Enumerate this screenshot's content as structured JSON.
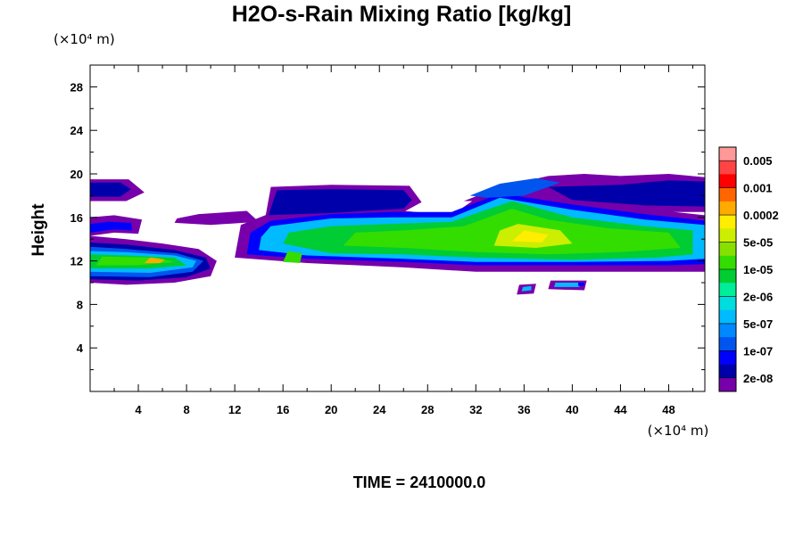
{
  "chart_data": {
    "type": "heatmap",
    "title": "H2O-s-Rain Mixing Ratio [kg/kg]",
    "ylabel": "Height",
    "x_unit": "(×10⁴ m)",
    "y_unit": "(×10⁴ m)",
    "xlim": [
      0,
      51
    ],
    "ylim": [
      0,
      30
    ],
    "x_ticks": [
      4,
      8,
      12,
      16,
      20,
      24,
      28,
      32,
      36,
      40,
      44,
      48
    ],
    "y_ticks": [
      4,
      8,
      12,
      16,
      20,
      24,
      28
    ],
    "colorbar": {
      "labels": [
        "0.005",
        "0.001",
        "0.0002",
        "5e-05",
        "1e-05",
        "2e-06",
        "5e-07",
        "1e-07",
        "2e-08"
      ],
      "colors": [
        "#ff9999",
        "#ff4444",
        "#ff0000",
        "#ff6600",
        "#ffaa00",
        "#ffee00",
        "#ccee00",
        "#88e000",
        "#33dd00",
        "#00cc33",
        "#00ee99",
        "#00dddd",
        "#00bbff",
        "#0088ff",
        "#0055ee",
        "#0000ff",
        "#0000aa",
        "#7700aa"
      ]
    },
    "regions": [
      {
        "level": 0,
        "pts": [
          [
            0,
            17.5
          ],
          [
            3,
            17.5
          ],
          [
            4.5,
            18.3
          ],
          [
            3.2,
            19.5
          ],
          [
            0,
            19.5
          ]
        ]
      },
      {
        "level": 1,
        "pts": [
          [
            0,
            17.9
          ],
          [
            2.5,
            17.9
          ],
          [
            3.4,
            18.6
          ],
          [
            2.5,
            19.2
          ],
          [
            0,
            19.2
          ]
        ]
      },
      {
        "level": 0,
        "pts": [
          [
            0,
            10
          ],
          [
            3,
            9.8
          ],
          [
            7,
            10
          ],
          [
            10,
            10.6
          ],
          [
            10.5,
            12
          ],
          [
            9,
            13.1
          ],
          [
            6,
            13.6
          ],
          [
            3,
            14
          ],
          [
            0,
            14.3
          ]
        ]
      },
      {
        "level": 1,
        "pts": [
          [
            0,
            10.3
          ],
          [
            4,
            10.2
          ],
          [
            8,
            10.5
          ],
          [
            10,
            11.3
          ],
          [
            9.6,
            12.3
          ],
          [
            7,
            13
          ],
          [
            3,
            13.5
          ],
          [
            0,
            13.7
          ]
        ]
      },
      {
        "level": 3,
        "pts": [
          [
            0,
            10.6
          ],
          [
            5,
            10.5
          ],
          [
            8.5,
            11
          ],
          [
            9.4,
            12
          ],
          [
            7.2,
            12.7
          ],
          [
            3,
            13.1
          ],
          [
            0,
            13.3
          ]
        ]
      },
      {
        "level": 5,
        "pts": [
          [
            0,
            11
          ],
          [
            5,
            10.9
          ],
          [
            8.5,
            11.4
          ],
          [
            8.8,
            12
          ],
          [
            7,
            12.5
          ],
          [
            3,
            12.8
          ],
          [
            0,
            12.9
          ]
        ]
      },
      {
        "level": 8,
        "pts": [
          [
            0,
            11.3
          ],
          [
            5,
            11.3
          ],
          [
            8,
            11.6
          ],
          [
            7,
            12.3
          ],
          [
            3,
            12.5
          ],
          [
            0,
            12.6
          ]
        ]
      },
      {
        "level": 9,
        "pts": [
          [
            0.5,
            11.6
          ],
          [
            4,
            11.6
          ],
          [
            7,
            11.9
          ],
          [
            5.5,
            12.3
          ],
          [
            1,
            12.4
          ]
        ]
      },
      {
        "level": 13,
        "pts": [
          [
            4.5,
            11.8
          ],
          [
            5.8,
            11.8
          ],
          [
            6.2,
            12.1
          ],
          [
            5,
            12.3
          ]
        ]
      },
      {
        "level": 0,
        "pts": [
          [
            0,
            14.3
          ],
          [
            2,
            14.6
          ],
          [
            4,
            14.5
          ],
          [
            4.3,
            15.8
          ],
          [
            2,
            16.2
          ],
          [
            0,
            16
          ]
        ]
      },
      {
        "level": 2,
        "pts": [
          [
            0,
            14.6
          ],
          [
            2,
            14.9
          ],
          [
            3.5,
            14.8
          ],
          [
            3.4,
            15.5
          ],
          [
            1.5,
            15.6
          ],
          [
            0,
            15.4
          ]
        ]
      },
      {
        "level": 0,
        "pts": [
          [
            7,
            15.5
          ],
          [
            10,
            15.3
          ],
          [
            14,
            15.6
          ],
          [
            13,
            16.6
          ],
          [
            9,
            16.3
          ],
          [
            7.2,
            15.9
          ]
        ]
      },
      {
        "level": 0,
        "pts": [
          [
            12,
            12.3
          ],
          [
            18,
            11.8
          ],
          [
            26,
            11.4
          ],
          [
            32,
            11
          ],
          [
            40,
            11
          ],
          [
            48,
            11
          ],
          [
            51,
            11
          ],
          [
            51,
            16.2
          ],
          [
            46,
            16.8
          ],
          [
            40,
            17.8
          ],
          [
            33,
            18.5
          ],
          [
            30,
            16.2
          ],
          [
            26,
            16.6
          ],
          [
            20,
            16.6
          ],
          [
            15,
            16.4
          ],
          [
            12.5,
            15.3
          ]
        ]
      },
      {
        "level": 0,
        "pts": [
          [
            14.5,
            15.8
          ],
          [
            20,
            16
          ],
          [
            26,
            16.5
          ],
          [
            27.5,
            17.4
          ],
          [
            26.5,
            18.9
          ],
          [
            20,
            19
          ],
          [
            15,
            18.8
          ]
        ]
      },
      {
        "level": 0,
        "pts": [
          [
            31,
            17.5
          ],
          [
            34,
            18.8
          ],
          [
            38,
            19.8
          ],
          [
            41,
            20
          ],
          [
            44,
            19.8
          ],
          [
            48,
            20
          ],
          [
            51,
            19.7
          ],
          [
            51,
            16.5
          ],
          [
            46,
            16.5
          ],
          [
            40,
            17.5
          ],
          [
            34,
            17.5
          ]
        ]
      },
      {
        "level": 1,
        "pts": [
          [
            14.8,
            16.2
          ],
          [
            20,
            16.4
          ],
          [
            26,
            16.8
          ],
          [
            26.7,
            17.6
          ],
          [
            26,
            18.5
          ],
          [
            20,
            18.6
          ],
          [
            15.5,
            18.5
          ]
        ]
      },
      {
        "level": 1,
        "pts": [
          [
            38,
            18.8
          ],
          [
            44,
            19
          ],
          [
            48,
            19.4
          ],
          [
            51,
            19.3
          ],
          [
            51,
            17
          ],
          [
            46,
            17.1
          ],
          [
            40,
            17.6
          ]
        ]
      },
      {
        "level": 2,
        "pts": [
          [
            13,
            12.6
          ],
          [
            18,
            12.2
          ],
          [
            26,
            11.9
          ],
          [
            32,
            11.6
          ],
          [
            40,
            11.6
          ],
          [
            48,
            11.6
          ],
          [
            51,
            11.7
          ],
          [
            51,
            15.7
          ],
          [
            46,
            16.3
          ],
          [
            40,
            17.2
          ],
          [
            34,
            18.2
          ],
          [
            30,
            16.5
          ],
          [
            25,
            16.5
          ],
          [
            20,
            16.3
          ],
          [
            15,
            15.7
          ],
          [
            13.3,
            14.6
          ]
        ]
      },
      {
        "level": 3,
        "pts": [
          [
            31.5,
            18
          ],
          [
            34,
            19.1
          ],
          [
            37,
            19.6
          ],
          [
            39,
            19.2
          ],
          [
            36,
            18
          ],
          [
            33,
            17.8
          ]
        ]
      },
      {
        "level": 5,
        "pts": [
          [
            14,
            13
          ],
          [
            18,
            12.5
          ],
          [
            26,
            12.2
          ],
          [
            32,
            11.9
          ],
          [
            40,
            11.9
          ],
          [
            48,
            12
          ],
          [
            51,
            12.2
          ],
          [
            51,
            15.3
          ],
          [
            46,
            15.8
          ],
          [
            40,
            16.7
          ],
          [
            34,
            17.8
          ],
          [
            30,
            16
          ],
          [
            25,
            16
          ],
          [
            20,
            15.9
          ],
          [
            15,
            15.2
          ],
          [
            14.2,
            14.2
          ]
        ]
      },
      {
        "level": 8,
        "pts": [
          [
            16,
            13.6
          ],
          [
            20,
            12.7
          ],
          [
            26,
            12.6
          ],
          [
            32,
            12.3
          ],
          [
            40,
            12.1
          ],
          [
            47,
            12.3
          ],
          [
            50,
            12.6
          ],
          [
            50,
            14.8
          ],
          [
            46,
            15.2
          ],
          [
            40,
            16
          ],
          [
            35,
            17.5
          ],
          [
            30,
            15.6
          ],
          [
            25,
            15.4
          ],
          [
            20,
            15.2
          ],
          [
            16.5,
            14.6
          ]
        ]
      },
      {
        "level": 9,
        "pts": [
          [
            21,
            13.4
          ],
          [
            26,
            13.2
          ],
          [
            32,
            12.8
          ],
          [
            38,
            12.6
          ],
          [
            44,
            12.8
          ],
          [
            49,
            13.2
          ],
          [
            48,
            14.6
          ],
          [
            43,
            15
          ],
          [
            38,
            15.8
          ],
          [
            35,
            16.8
          ],
          [
            31,
            15.2
          ],
          [
            26,
            14.8
          ],
          [
            22,
            14.6
          ]
        ]
      },
      {
        "level": 11,
        "pts": [
          [
            33.5,
            13.4
          ],
          [
            37,
            13.2
          ],
          [
            40,
            13.6
          ],
          [
            39,
            14.8
          ],
          [
            35.5,
            15.4
          ],
          [
            34,
            14.8
          ]
        ]
      },
      {
        "level": 12,
        "pts": [
          [
            35,
            13.8
          ],
          [
            37.5,
            13.7
          ],
          [
            38,
            14.4
          ],
          [
            36,
            14.8
          ]
        ]
      },
      {
        "level": 9,
        "pts": [
          [
            16,
            11.9
          ],
          [
            17.4,
            11.8
          ],
          [
            17.6,
            12.7
          ],
          [
            16.4,
            12.9
          ]
        ]
      },
      {
        "level": 0,
        "pts": [
          [
            35.4,
            8.9
          ],
          [
            36.8,
            9
          ],
          [
            37,
            9.9
          ],
          [
            35.6,
            9.8
          ]
        ]
      },
      {
        "level": 5,
        "pts": [
          [
            35.8,
            9.2
          ],
          [
            36.6,
            9.3
          ],
          [
            36.6,
            9.7
          ],
          [
            35.9,
            9.6
          ]
        ]
      },
      {
        "level": 0,
        "pts": [
          [
            38,
            9.4
          ],
          [
            41,
            9.3
          ],
          [
            41.2,
            10.2
          ],
          [
            38.2,
            10.2
          ]
        ]
      },
      {
        "level": 5,
        "pts": [
          [
            38.5,
            9.6
          ],
          [
            40.6,
            9.6
          ],
          [
            40.6,
            10
          ],
          [
            38.6,
            10
          ]
        ]
      },
      {
        "level": 2,
        "pts": [
          [
            40.5,
            9.7
          ],
          [
            41,
            9.7
          ],
          [
            41,
            10
          ],
          [
            40.5,
            10
          ]
        ]
      }
    ]
  },
  "time_label": "TIME = 2410000.0"
}
